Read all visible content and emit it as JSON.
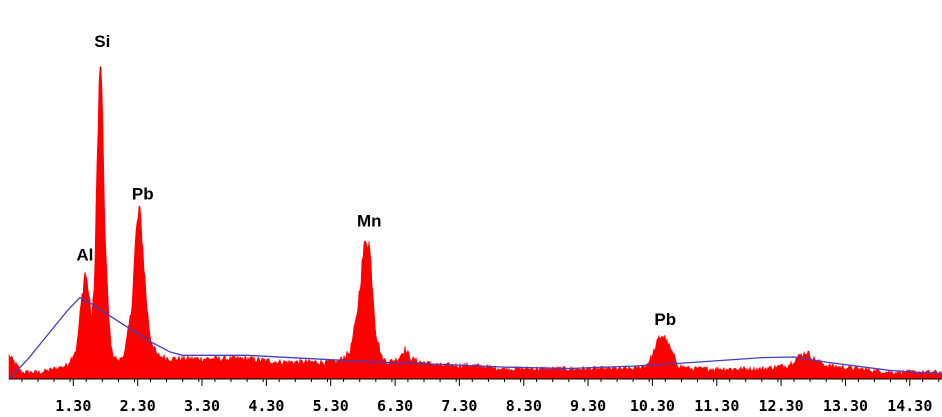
{
  "chart_data": {
    "type": "area",
    "title": "",
    "xlabel": "",
    "ylabel": "",
    "xlim": [
      0.3,
      14.8
    ],
    "ylim": [
      0,
      100
    ],
    "grid": false,
    "legend": "none",
    "x_ticks": [
      1.3,
      2.3,
      3.3,
      4.3,
      5.3,
      6.3,
      7.3,
      8.3,
      9.3,
      10.3,
      11.3,
      12.3,
      13.3,
      14.3
    ],
    "tick_labels": [
      "1.30",
      "2.30",
      "3.30",
      "4.30",
      "5.30",
      "6.30",
      "7.30",
      "8.30",
      "9.30",
      "10.30",
      "11.30",
      "12.30",
      "13.30",
      "14.30"
    ],
    "series": [
      {
        "kind": "spectrum",
        "color": "#ff0000",
        "x": [
          0.3,
          0.5,
          0.8,
          1.0,
          1.2,
          1.35,
          1.42,
          1.48,
          1.53,
          1.58,
          1.62,
          1.67,
          1.7,
          1.73,
          1.76,
          1.8,
          1.85,
          1.9,
          2.0,
          2.1,
          2.2,
          2.27,
          2.32,
          2.36,
          2.4,
          2.45,
          2.5,
          2.6,
          2.8,
          3.0,
          3.5,
          4.0,
          4.5,
          5.0,
          5.4,
          5.6,
          5.7,
          5.8,
          5.85,
          5.9,
          5.95,
          6.0,
          6.1,
          6.2,
          6.35,
          6.45,
          6.55,
          6.7,
          7.0,
          7.5,
          8.0,
          8.5,
          9.0,
          9.5,
          10.0,
          10.2,
          10.3,
          10.4,
          10.45,
          10.5,
          10.6,
          10.7,
          10.9,
          11.5,
          12.0,
          12.4,
          12.6,
          12.7,
          12.8,
          13.0,
          13.5,
          14.0,
          14.5,
          14.8
        ],
        "y": [
          7,
          2,
          2,
          3,
          4,
          9,
          22,
          32,
          27,
          18,
          25,
          65,
          85,
          95,
          70,
          40,
          18,
          8,
          5,
          8,
          20,
          42,
          50,
          45,
          33,
          20,
          12,
          7,
          6,
          6,
          6,
          6,
          5,
          5,
          5,
          8,
          18,
          36,
          42,
          40,
          28,
          14,
          6,
          5,
          6,
          9,
          6,
          5,
          4,
          4,
          3,
          3,
          3,
          3,
          3,
          4,
          7,
          12,
          13,
          12,
          8,
          4,
          3,
          3,
          3,
          4,
          7,
          8,
          6,
          4,
          3,
          2,
          2,
          2
        ]
      },
      {
        "kind": "background",
        "color": "#4040c0",
        "x": [
          0.3,
          0.6,
          0.9,
          1.2,
          1.4,
          1.6,
          2.0,
          2.5,
          2.8,
          3.0,
          4.0,
          5.0,
          6.0,
          7.0,
          8.0,
          9.0,
          10.0,
          11.0,
          12.0,
          12.5,
          13.0,
          14.0,
          14.8
        ],
        "y": [
          0,
          6,
          13,
          20,
          24,
          22,
          17,
          11,
          8,
          7,
          7,
          6,
          5,
          4.3,
          3.5,
          3.1,
          3.8,
          5,
          6.3,
          6.5,
          5,
          2.5,
          1.5
        ]
      }
    ],
    "annotations": [
      {
        "text": "Si",
        "x": 1.75,
        "y": 95
      },
      {
        "text": "Pb",
        "x": 2.38,
        "y": 50
      },
      {
        "text": "Al",
        "x": 1.48,
        "y": 32
      },
      {
        "text": "Mn",
        "x": 5.9,
        "y": 42
      },
      {
        "text": "Pb",
        "x": 10.5,
        "y": 13
      }
    ]
  }
}
